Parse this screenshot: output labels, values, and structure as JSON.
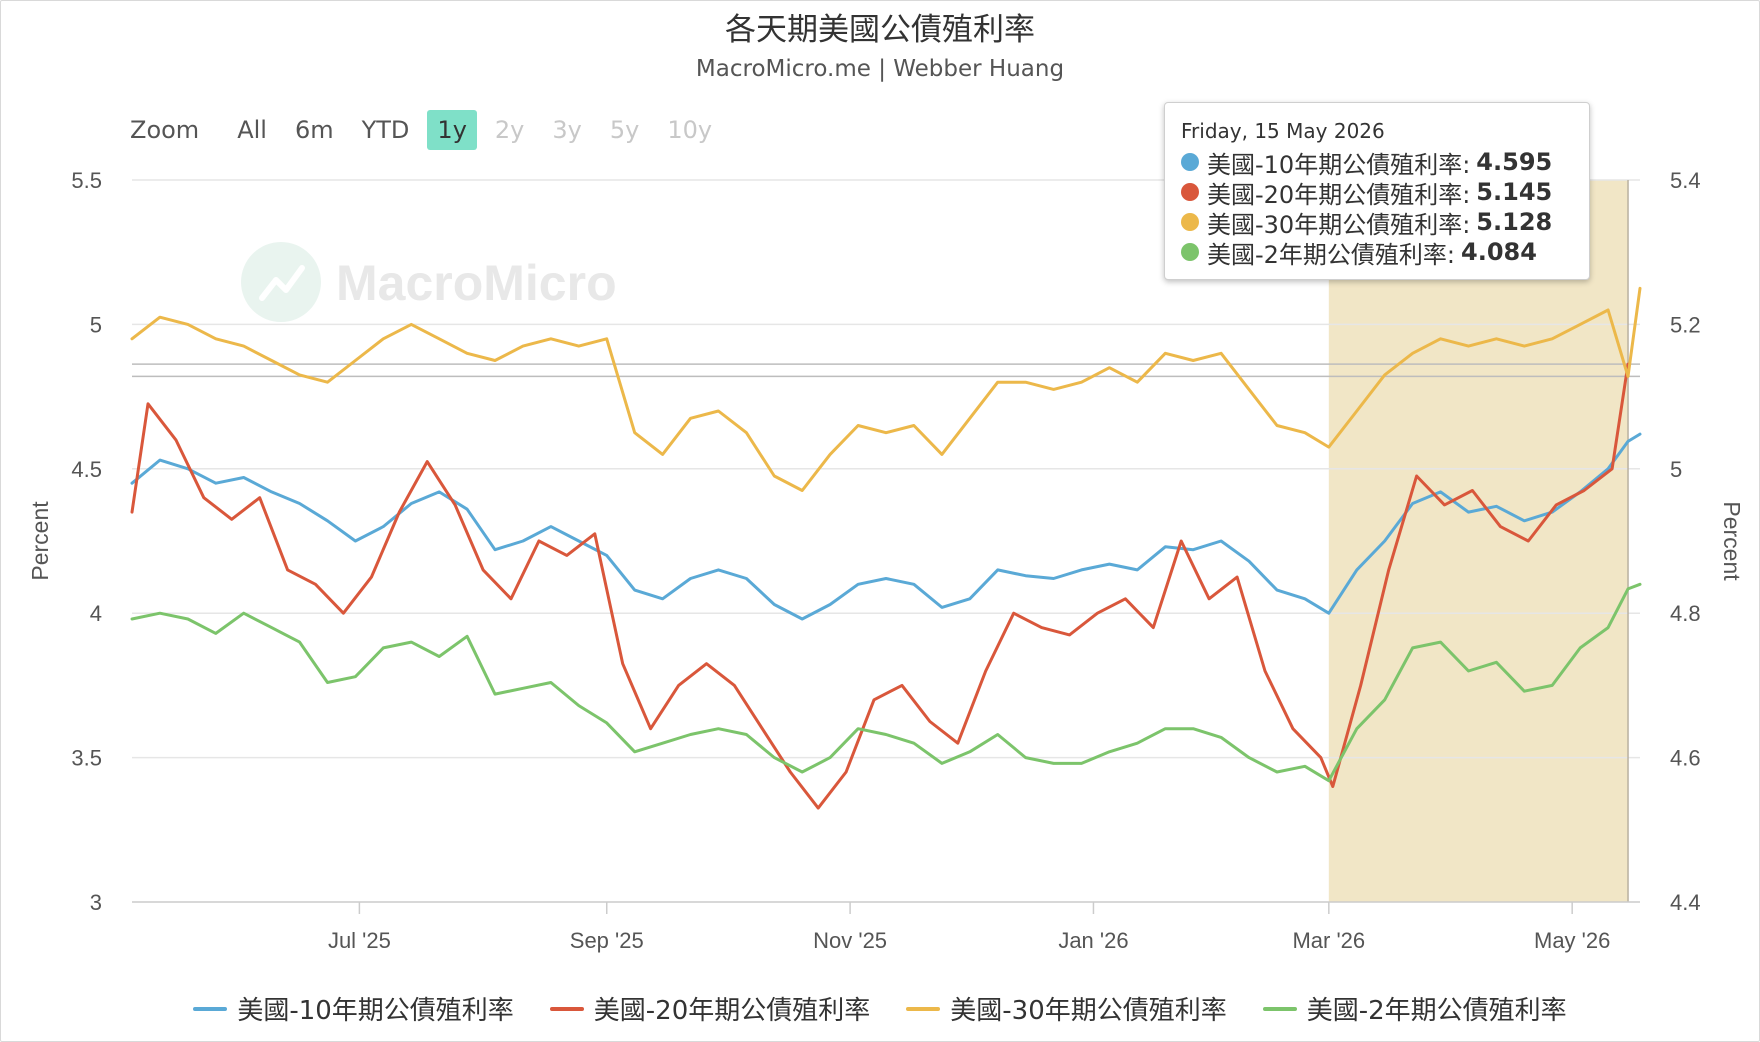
{
  "header": {
    "title": "各天期美國公債殖利率",
    "subtitle": "MacroMicro.me | Webber Huang"
  },
  "watermark": "MacroMicro",
  "zoom": {
    "label": "Zoom",
    "buttons": [
      {
        "label": "All",
        "state": "normal"
      },
      {
        "label": "6m",
        "state": "normal"
      },
      {
        "label": "YTD",
        "state": "normal"
      },
      {
        "label": "1y",
        "state": "active"
      },
      {
        "label": "2y",
        "state": "disabled"
      },
      {
        "label": "3y",
        "state": "disabled"
      },
      {
        "label": "5y",
        "state": "disabled"
      },
      {
        "label": "10y",
        "state": "disabled"
      }
    ]
  },
  "tooltip": {
    "date": "Friday, 15 May 2026",
    "rows": [
      {
        "label": "美國-10年期公債殖利率:",
        "value": "4.595",
        "color": "#5aa9d6"
      },
      {
        "label": "美國-20年期公債殖利率:",
        "value": "5.145",
        "color": "#d9573b"
      },
      {
        "label": "美國-30年期公債殖利率:",
        "value": "5.128",
        "color": "#ecb84a"
      },
      {
        "label": "美國-2年期公債殖利率:",
        "value": "4.084",
        "color": "#7cc46b"
      }
    ]
  },
  "chart_data": {
    "type": "line",
    "title": "各天期美國公債殖利率",
    "subtitle": "MacroMicro.me | Webber Huang",
    "x_range": [
      "2025-05-05",
      "2026-05-18"
    ],
    "x_ticks": [
      {
        "date": "2025-07-01",
        "label": "Jul '25"
      },
      {
        "date": "2025-09-01",
        "label": "Sep '25"
      },
      {
        "date": "2025-11-01",
        "label": "Nov '25"
      },
      {
        "date": "2026-01-01",
        "label": "Jan '26"
      },
      {
        "date": "2026-03-01",
        "label": "Mar '26"
      },
      {
        "date": "2026-05-01",
        "label": "May '26"
      }
    ],
    "y_left": {
      "label": "Percent",
      "range": [
        3,
        5.5
      ],
      "ticks": [
        "3",
        "3.5",
        "4",
        "4.5",
        "5",
        "5.5"
      ]
    },
    "y_right": {
      "label": "Percent",
      "range": [
        4.4,
        5.4
      ],
      "ticks": [
        "4.4",
        "4.6",
        "4.8",
        "5",
        "5.2",
        "5.4"
      ]
    },
    "grid": true,
    "legend_position": "bottom",
    "highlight_band": {
      "from": "2026-03-01",
      "to": "2026-05-15",
      "color": "#f1e6c6"
    },
    "crosshair_date": "2026-05-15",
    "reference_lines": [
      {
        "axis": "right",
        "value": 5.145
      },
      {
        "axis": "right",
        "value": 5.128
      }
    ],
    "series": [
      {
        "name": "美國-10年期公債殖利率",
        "color": "#5aa9d6",
        "axis": "left",
        "points": [
          [
            "2025-05-05",
            4.45
          ],
          [
            "2025-05-12",
            4.53
          ],
          [
            "2025-05-19",
            4.5
          ],
          [
            "2025-05-26",
            4.45
          ],
          [
            "2025-06-02",
            4.47
          ],
          [
            "2025-06-09",
            4.42
          ],
          [
            "2025-06-16",
            4.38
          ],
          [
            "2025-06-23",
            4.32
          ],
          [
            "2025-06-30",
            4.25
          ],
          [
            "2025-07-07",
            4.3
          ],
          [
            "2025-07-14",
            4.38
          ],
          [
            "2025-07-21",
            4.42
          ],
          [
            "2025-07-28",
            4.36
          ],
          [
            "2025-08-04",
            4.22
          ],
          [
            "2025-08-11",
            4.25
          ],
          [
            "2025-08-18",
            4.3
          ],
          [
            "2025-08-25",
            4.25
          ],
          [
            "2025-09-01",
            4.2
          ],
          [
            "2025-09-08",
            4.08
          ],
          [
            "2025-09-15",
            4.05
          ],
          [
            "2025-09-22",
            4.12
          ],
          [
            "2025-09-29",
            4.15
          ],
          [
            "2025-10-06",
            4.12
          ],
          [
            "2025-10-13",
            4.03
          ],
          [
            "2025-10-20",
            3.98
          ],
          [
            "2025-10-27",
            4.03
          ],
          [
            "2025-11-03",
            4.1
          ],
          [
            "2025-11-10",
            4.12
          ],
          [
            "2025-11-17",
            4.1
          ],
          [
            "2025-11-24",
            4.02
          ],
          [
            "2025-12-01",
            4.05
          ],
          [
            "2025-12-08",
            4.15
          ],
          [
            "2025-12-15",
            4.13
          ],
          [
            "2025-12-22",
            4.12
          ],
          [
            "2025-12-29",
            4.15
          ],
          [
            "2026-01-05",
            4.17
          ],
          [
            "2026-01-12",
            4.15
          ],
          [
            "2026-01-19",
            4.23
          ],
          [
            "2026-01-26",
            4.22
          ],
          [
            "2026-02-02",
            4.25
          ],
          [
            "2026-02-09",
            4.18
          ],
          [
            "2026-02-16",
            4.08
          ],
          [
            "2026-02-23",
            4.05
          ],
          [
            "2026-03-01",
            4.0
          ],
          [
            "2026-03-08",
            4.15
          ],
          [
            "2026-03-15",
            4.25
          ],
          [
            "2026-03-22",
            4.38
          ],
          [
            "2026-03-29",
            4.42
          ],
          [
            "2026-04-05",
            4.35
          ],
          [
            "2026-04-12",
            4.37
          ],
          [
            "2026-04-19",
            4.32
          ],
          [
            "2026-04-26",
            4.35
          ],
          [
            "2026-05-03",
            4.42
          ],
          [
            "2026-05-10",
            4.5
          ],
          [
            "2026-05-15",
            4.595
          ],
          [
            "2026-05-18",
            4.62
          ]
        ]
      },
      {
        "name": "美國-20年期公債殖利率",
        "color": "#d9573b",
        "axis": "right",
        "points": [
          [
            "2025-05-05",
            4.94
          ],
          [
            "2025-05-09",
            5.09
          ],
          [
            "2025-05-16",
            5.04
          ],
          [
            "2025-05-23",
            4.96
          ],
          [
            "2025-05-30",
            4.93
          ],
          [
            "2025-06-06",
            4.96
          ],
          [
            "2025-06-13",
            4.86
          ],
          [
            "2025-06-20",
            4.84
          ],
          [
            "2025-06-27",
            4.8
          ],
          [
            "2025-07-04",
            4.85
          ],
          [
            "2025-07-11",
            4.94
          ],
          [
            "2025-07-18",
            5.01
          ],
          [
            "2025-07-25",
            4.95
          ],
          [
            "2025-08-01",
            4.86
          ],
          [
            "2025-08-08",
            4.82
          ],
          [
            "2025-08-15",
            4.9
          ],
          [
            "2025-08-22",
            4.88
          ],
          [
            "2025-08-29",
            4.91
          ],
          [
            "2025-09-05",
            4.73
          ],
          [
            "2025-09-12",
            4.64
          ],
          [
            "2025-09-19",
            4.7
          ],
          [
            "2025-09-26",
            4.73
          ],
          [
            "2025-10-03",
            4.7
          ],
          [
            "2025-10-10",
            4.64
          ],
          [
            "2025-10-17",
            4.58
          ],
          [
            "2025-10-24",
            4.53
          ],
          [
            "2025-10-31",
            4.58
          ],
          [
            "2025-11-07",
            4.68
          ],
          [
            "2025-11-14",
            4.7
          ],
          [
            "2025-11-21",
            4.65
          ],
          [
            "2025-11-28",
            4.62
          ],
          [
            "2025-12-05",
            4.72
          ],
          [
            "2025-12-12",
            4.8
          ],
          [
            "2025-12-19",
            4.78
          ],
          [
            "2025-12-26",
            4.77
          ],
          [
            "2026-01-02",
            4.8
          ],
          [
            "2026-01-09",
            4.82
          ],
          [
            "2026-01-16",
            4.78
          ],
          [
            "2026-01-23",
            4.9
          ],
          [
            "2026-01-30",
            4.82
          ],
          [
            "2026-02-06",
            4.85
          ],
          [
            "2026-02-13",
            4.72
          ],
          [
            "2026-02-20",
            4.64
          ],
          [
            "2026-02-27",
            4.6
          ],
          [
            "2026-03-02",
            4.56
          ],
          [
            "2026-03-09",
            4.7
          ],
          [
            "2026-03-16",
            4.86
          ],
          [
            "2026-03-23",
            4.99
          ],
          [
            "2026-03-30",
            4.95
          ],
          [
            "2026-04-06",
            4.97
          ],
          [
            "2026-04-13",
            4.92
          ],
          [
            "2026-04-20",
            4.9
          ],
          [
            "2026-04-27",
            4.95
          ],
          [
            "2026-05-04",
            4.97
          ],
          [
            "2026-05-11",
            5.0
          ],
          [
            "2026-05-15",
            5.145
          ]
        ]
      },
      {
        "name": "美國-30年期公債殖利率",
        "color": "#ecb84a",
        "axis": "right",
        "points": [
          [
            "2025-05-05",
            5.18
          ],
          [
            "2025-05-12",
            5.21
          ],
          [
            "2025-05-19",
            5.2
          ],
          [
            "2025-05-26",
            5.18
          ],
          [
            "2025-06-02",
            5.17
          ],
          [
            "2025-06-09",
            5.15
          ],
          [
            "2025-06-16",
            5.13
          ],
          [
            "2025-06-23",
            5.12
          ],
          [
            "2025-06-30",
            5.15
          ],
          [
            "2025-07-07",
            5.18
          ],
          [
            "2025-07-14",
            5.2
          ],
          [
            "2025-07-21",
            5.18
          ],
          [
            "2025-07-28",
            5.16
          ],
          [
            "2025-08-04",
            5.15
          ],
          [
            "2025-08-11",
            5.17
          ],
          [
            "2025-08-18",
            5.18
          ],
          [
            "2025-08-25",
            5.17
          ],
          [
            "2025-09-01",
            5.18
          ],
          [
            "2025-09-08",
            5.05
          ],
          [
            "2025-09-15",
            5.02
          ],
          [
            "2025-09-22",
            5.07
          ],
          [
            "2025-09-29",
            5.08
          ],
          [
            "2025-10-06",
            5.05
          ],
          [
            "2025-10-13",
            4.99
          ],
          [
            "2025-10-20",
            4.97
          ],
          [
            "2025-10-27",
            5.02
          ],
          [
            "2025-11-03",
            5.06
          ],
          [
            "2025-11-10",
            5.05
          ],
          [
            "2025-11-17",
            5.06
          ],
          [
            "2025-11-24",
            5.02
          ],
          [
            "2025-12-01",
            5.07
          ],
          [
            "2025-12-08",
            5.12
          ],
          [
            "2025-12-15",
            5.12
          ],
          [
            "2025-12-22",
            5.11
          ],
          [
            "2025-12-29",
            5.12
          ],
          [
            "2026-01-05",
            5.14
          ],
          [
            "2026-01-12",
            5.12
          ],
          [
            "2026-01-19",
            5.16
          ],
          [
            "2026-01-26",
            5.15
          ],
          [
            "2026-02-02",
            5.16
          ],
          [
            "2026-02-09",
            5.11
          ],
          [
            "2026-02-16",
            5.06
          ],
          [
            "2026-02-23",
            5.05
          ],
          [
            "2026-03-01",
            5.03
          ],
          [
            "2026-03-08",
            5.08
          ],
          [
            "2026-03-15",
            5.13
          ],
          [
            "2026-03-22",
            5.16
          ],
          [
            "2026-03-29",
            5.18
          ],
          [
            "2026-04-05",
            5.17
          ],
          [
            "2026-04-12",
            5.18
          ],
          [
            "2026-04-19",
            5.17
          ],
          [
            "2026-04-26",
            5.18
          ],
          [
            "2026-05-03",
            5.2
          ],
          [
            "2026-05-10",
            5.22
          ],
          [
            "2026-05-15",
            5.128
          ],
          [
            "2026-05-18",
            5.25
          ]
        ]
      },
      {
        "name": "美國-2年期公債殖利率",
        "color": "#7cc46b",
        "axis": "left",
        "points": [
          [
            "2025-05-05",
            3.98
          ],
          [
            "2025-05-12",
            4.0
          ],
          [
            "2025-05-19",
            3.98
          ],
          [
            "2025-05-26",
            3.93
          ],
          [
            "2025-06-02",
            4.0
          ],
          [
            "2025-06-09",
            3.95
          ],
          [
            "2025-06-16",
            3.9
          ],
          [
            "2025-06-23",
            3.76
          ],
          [
            "2025-06-30",
            3.78
          ],
          [
            "2025-07-07",
            3.88
          ],
          [
            "2025-07-14",
            3.9
          ],
          [
            "2025-07-21",
            3.85
          ],
          [
            "2025-07-28",
            3.92
          ],
          [
            "2025-08-04",
            3.72
          ],
          [
            "2025-08-11",
            3.74
          ],
          [
            "2025-08-18",
            3.76
          ],
          [
            "2025-08-25",
            3.68
          ],
          [
            "2025-09-01",
            3.62
          ],
          [
            "2025-09-08",
            3.52
          ],
          [
            "2025-09-15",
            3.55
          ],
          [
            "2025-09-22",
            3.58
          ],
          [
            "2025-09-29",
            3.6
          ],
          [
            "2025-10-06",
            3.58
          ],
          [
            "2025-10-13",
            3.5
          ],
          [
            "2025-10-20",
            3.45
          ],
          [
            "2025-10-27",
            3.5
          ],
          [
            "2025-11-03",
            3.6
          ],
          [
            "2025-11-10",
            3.58
          ],
          [
            "2025-11-17",
            3.55
          ],
          [
            "2025-11-24",
            3.48
          ],
          [
            "2025-12-01",
            3.52
          ],
          [
            "2025-12-08",
            3.58
          ],
          [
            "2025-12-15",
            3.5
          ],
          [
            "2025-12-22",
            3.48
          ],
          [
            "2025-12-29",
            3.48
          ],
          [
            "2026-01-05",
            3.52
          ],
          [
            "2026-01-12",
            3.55
          ],
          [
            "2026-01-19",
            3.6
          ],
          [
            "2026-01-26",
            3.6
          ],
          [
            "2026-02-02",
            3.57
          ],
          [
            "2026-02-09",
            3.5
          ],
          [
            "2026-02-16",
            3.45
          ],
          [
            "2026-02-23",
            3.47
          ],
          [
            "2026-03-01",
            3.42
          ],
          [
            "2026-03-08",
            3.6
          ],
          [
            "2026-03-15",
            3.7
          ],
          [
            "2026-03-22",
            3.88
          ],
          [
            "2026-03-29",
            3.9
          ],
          [
            "2026-04-05",
            3.8
          ],
          [
            "2026-04-12",
            3.83
          ],
          [
            "2026-04-19",
            3.73
          ],
          [
            "2026-04-26",
            3.75
          ],
          [
            "2026-05-03",
            3.88
          ],
          [
            "2026-05-10",
            3.95
          ],
          [
            "2026-05-15",
            4.084
          ],
          [
            "2026-05-18",
            4.1
          ]
        ]
      }
    ]
  },
  "legend": [
    {
      "label": "美國-10年期公債殖利率",
      "color": "#5aa9d6"
    },
    {
      "label": "美國-20年期公債殖利率",
      "color": "#d9573b"
    },
    {
      "label": "美國-30年期公債殖利率",
      "color": "#ecb84a"
    },
    {
      "label": "美國-2年期公債殖利率",
      "color": "#7cc46b"
    }
  ]
}
